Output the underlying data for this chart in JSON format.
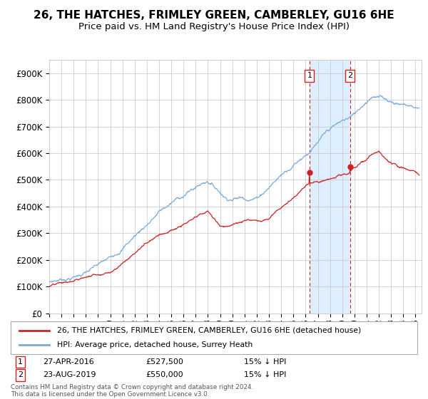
{
  "title": "26, THE HATCHES, FRIMLEY GREEN, CAMBERLEY, GU16 6HE",
  "subtitle": "Price paid vs. HM Land Registry's House Price Index (HPI)",
  "ylabel_ticks": [
    "£0",
    "£100K",
    "£200K",
    "£300K",
    "£400K",
    "£500K",
    "£600K",
    "£700K",
    "£800K",
    "£900K"
  ],
  "ytick_vals": [
    0,
    100000,
    200000,
    300000,
    400000,
    500000,
    600000,
    700000,
    800000,
    900000
  ],
  "ylim": [
    0,
    950000
  ],
  "xlim_start": 1995.0,
  "xlim_end": 2025.5,
  "sale1_x": 2016.32,
  "sale1_y": 527500,
  "sale1_label": "1",
  "sale1_date": "27-APR-2016",
  "sale1_price": "£527,500",
  "sale1_hpi": "15% ↓ HPI",
  "sale2_x": 2019.64,
  "sale2_y": 550000,
  "sale2_label": "2",
  "sale2_date": "23-AUG-2019",
  "sale2_price": "£550,000",
  "sale2_hpi": "15% ↓ HPI",
  "line_color_red": "#cc2222",
  "line_color_blue": "#7aaadd",
  "shade_color": "#ddeeff",
  "legend_label_red": "26, THE HATCHES, FRIMLEY GREEN, CAMBERLEY, GU16 6HE (detached house)",
  "legend_label_blue": "HPI: Average price, detached house, Surrey Heath",
  "footer": "Contains HM Land Registry data © Crown copyright and database right 2024.\nThis data is licensed under the Open Government Licence v3.0.",
  "bg_color": "#ffffff",
  "grid_color": "#cccccc",
  "title_fontsize": 11,
  "subtitle_fontsize": 9.5,
  "axis_fontsize": 8.5
}
